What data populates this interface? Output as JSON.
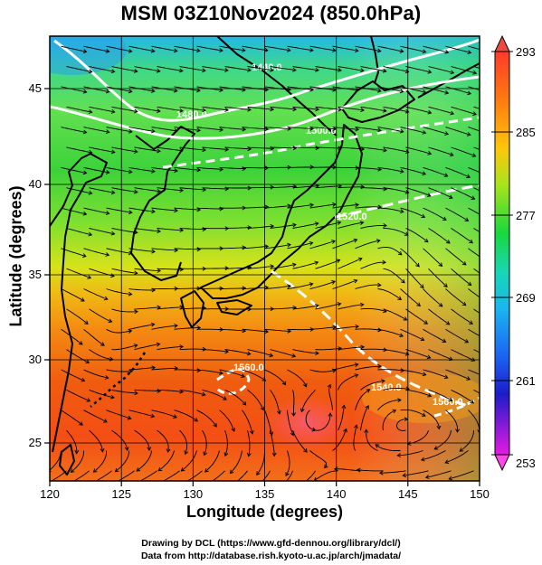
{
  "title": "MSM 03Z10Nov2024 (850.0hPa)",
  "axes": {
    "xlabel": "Longitude (degrees)",
    "ylabel": "Latitude  (degrees)",
    "xticks": [
      "120",
      "125",
      "130",
      "135",
      "140",
      "145",
      "150"
    ],
    "yticks": [
      "25",
      "30",
      "35",
      "40",
      "45"
    ]
  },
  "colorbar": {
    "labels": [
      "293",
      "285",
      "277",
      "269",
      "261",
      "253"
    ]
  },
  "contour_labels": [
    "1440.0",
    "1480.0",
    "1500.0",
    "1520.0",
    "1540.0",
    "1560.0",
    "1560.0"
  ],
  "credits": {
    "line1": "Drawing by DCL (https://www.gfd-dennou.org/library/dcl/)",
    "line2": "Data from http://database.rish.kyoto-u.ac.jp/arch/jmadata/"
  },
  "chart_data": {
    "type": "heatmap",
    "title": "MSM 03Z10Nov2024 (850.0hPa)",
    "xlabel": "Longitude (degrees)",
    "ylabel": "Latitude  (degrees)",
    "xlim": [
      120,
      150
    ],
    "ylim": [
      22.4,
      47.6
    ],
    "xticks": [
      120,
      125,
      130,
      135,
      140,
      145,
      150
    ],
    "yticks": [
      25,
      30,
      35,
      40,
      45
    ],
    "grid": true,
    "colorbar": {
      "min": 253,
      "max": 293,
      "ticks": [
        253,
        261,
        269,
        277,
        285,
        293
      ]
    },
    "field": "temperature (K) shading with streamlines and geopotential height contours",
    "contour_levels": [
      1440,
      1480,
      1500,
      1520,
      1540,
      1560
    ]
  }
}
